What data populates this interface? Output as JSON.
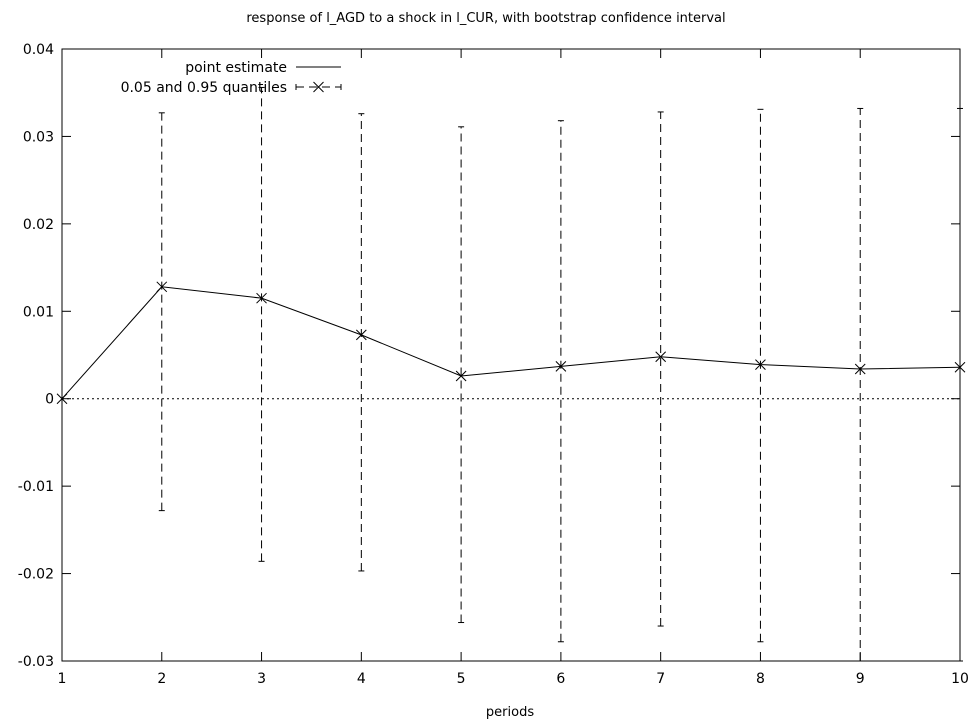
{
  "chart_data": {
    "type": "line",
    "title": "response of l_AGD to a shock in l_CUR, with bootstrap confidence interval",
    "xlabel": "periods",
    "ylabel": "",
    "xlim": [
      1,
      10
    ],
    "ylim": [
      -0.03,
      0.04
    ],
    "x_ticks": [
      1,
      2,
      3,
      4,
      5,
      6,
      7,
      8,
      9,
      10
    ],
    "y_ticks": [
      -0.03,
      -0.02,
      -0.01,
      0,
      0.01,
      0.02,
      0.03,
      0.04
    ],
    "y_tick_labels": [
      "-0.03",
      "-0.02",
      "-0.01",
      "0",
      "0.01",
      "0.02",
      "0.03",
      "0.04"
    ],
    "grid": false,
    "zero_line": true,
    "legend_position": "top-left",
    "series": [
      {
        "name": "point estimate",
        "style": "solid line with x markers",
        "x": [
          1,
          2,
          3,
          4,
          5,
          6,
          7,
          8,
          9,
          10
        ],
        "values": [
          0.0,
          0.0128,
          0.0115,
          0.0073,
          0.0026,
          0.0037,
          0.0048,
          0.0039,
          0.0034,
          0.0036
        ]
      },
      {
        "name": "0.05 and 0.95 quantiles",
        "style": "dashed error bars",
        "x": [
          1,
          2,
          3,
          4,
          5,
          6,
          7,
          8,
          9,
          10
        ],
        "lower": [
          0.0,
          -0.0128,
          -0.0186,
          -0.0197,
          -0.0256,
          -0.0278,
          -0.026,
          -0.0278,
          -0.03,
          -0.03
        ],
        "upper": [
          0.0,
          0.0327,
          0.0356,
          0.0326,
          0.0311,
          0.0318,
          0.0328,
          0.0331,
          0.0332,
          0.0332
        ]
      }
    ]
  }
}
